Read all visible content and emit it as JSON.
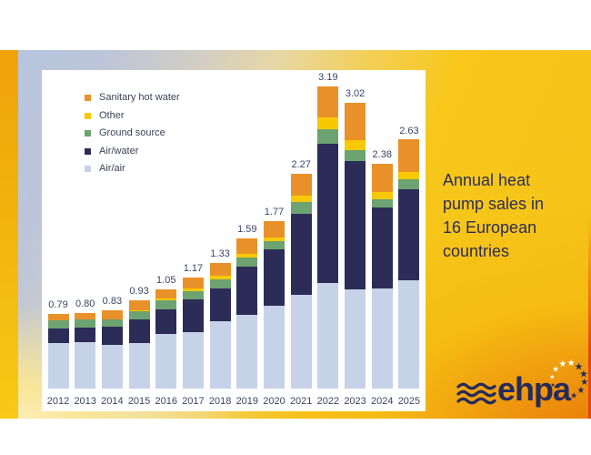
{
  "title": {
    "text": "Annual heat\npump sales in\n16 European\ncountries"
  },
  "logo": {
    "text": "ehpa",
    "color": "#262b5b",
    "waves_icon": "three-wave-lines",
    "stars": [
      {
        "angle": -80,
        "color": "#ffffff",
        "size": 7
      },
      {
        "angle": -50,
        "color": "#ffffff",
        "size": 9
      },
      {
        "angle": -20,
        "color": "#ffffff",
        "size": 10
      },
      {
        "angle": 10,
        "color": "#ffffff",
        "size": 10
      },
      {
        "angle": 40,
        "color": "#262b5b",
        "size": 11
      },
      {
        "angle": 70,
        "color": "#262b5b",
        "size": 11
      },
      {
        "angle": 100,
        "color": "#262b5b",
        "size": 10
      },
      {
        "angle": 130,
        "color": "#262b5b",
        "size": 10
      },
      {
        "angle": 160,
        "color": "#262b5b",
        "size": 9
      },
      {
        "angle": 190,
        "color": "#262b5b",
        "size": 8
      },
      {
        "angle": 220,
        "color": "#262b5b",
        "size": 7
      },
      {
        "angle": 250,
        "color": "#262b5b",
        "size": 6
      }
    ]
  },
  "colors": {
    "accent_gold": "#f7c71b",
    "accent_orange": "#ef9a0e",
    "accent_blue_gray": "#b6c5df",
    "text_navy": "#2b2d56"
  },
  "chart_data": {
    "type": "bar",
    "stacked": true,
    "title": "",
    "xlabel": "",
    "ylabel": "",
    "unit": "million units (values shown above bars)",
    "grid": false,
    "legend_position": "top-left",
    "ylim": [
      0,
      3.4
    ],
    "categories": [
      "2012",
      "2013",
      "2014",
      "2015",
      "2016",
      "2017",
      "2018",
      "2019",
      "2020",
      "2021",
      "2022",
      "2023",
      "2024",
      "2025"
    ],
    "totals_labels": [
      "0.79",
      "0.80",
      "0.83",
      "0.93",
      "1.05",
      "1.17",
      "1.33",
      "1.59",
      "1.77",
      "2.27",
      "3.19",
      "3.02",
      "2.38",
      "2.63"
    ],
    "series": [
      {
        "name": "Air/air",
        "color": "#c6d2e8",
        "values": [
          0.48,
          0.49,
          0.46,
          0.48,
          0.58,
          0.6,
          0.71,
          0.78,
          0.88,
          0.99,
          1.12,
          1.05,
          1.06,
          1.14
        ]
      },
      {
        "name": "Air/water",
        "color": "#2c2c58",
        "values": [
          0.16,
          0.155,
          0.19,
          0.255,
          0.26,
          0.34,
          0.35,
          0.51,
          0.59,
          0.86,
          1.47,
          1.35,
          0.85,
          0.97
        ]
      },
      {
        "name": "Ground source",
        "color": "#6da271",
        "values": [
          0.08,
          0.085,
          0.08,
          0.08,
          0.09,
          0.085,
          0.09,
          0.095,
          0.085,
          0.12,
          0.15,
          0.12,
          0.09,
          0.1
        ]
      },
      {
        "name": "Other",
        "color": "#f8c903",
        "values": [
          0.0,
          0.0,
          0.0,
          0.01,
          0.02,
          0.03,
          0.04,
          0.035,
          0.045,
          0.07,
          0.13,
          0.11,
          0.08,
          0.08
        ]
      },
      {
        "name": "Sanitary hot water",
        "color": "#e99129",
        "values": [
          0.07,
          0.07,
          0.1,
          0.105,
          0.1,
          0.115,
          0.14,
          0.17,
          0.17,
          0.23,
          0.32,
          0.39,
          0.3,
          0.34
        ]
      }
    ],
    "legend": [
      {
        "label": "Sanitary hot water",
        "color": "#e99129"
      },
      {
        "label": "Other",
        "color": "#f8c903"
      },
      {
        "label": "Ground source",
        "color": "#6da271"
      },
      {
        "label": "Air/water",
        "color": "#2c2c58"
      },
      {
        "label": "Air/air",
        "color": "#c6d2e8"
      }
    ]
  }
}
